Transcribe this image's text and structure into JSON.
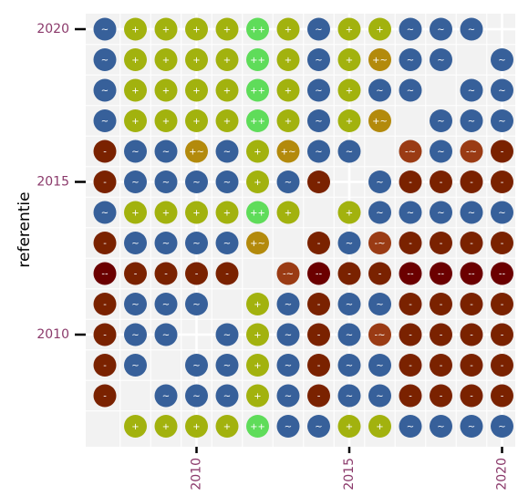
{
  "chart_data": {
    "type": "heatmap",
    "title": "",
    "xlabel": "",
    "ylabel": "referentie",
    "x": [
      2007,
      2008,
      2009,
      2010,
      2011,
      2012,
      2013,
      2014,
      2015,
      2016,
      2017,
      2018,
      2019,
      2020
    ],
    "y": [
      2020,
      2019,
      2018,
      2017,
      2016,
      2015,
      2014,
      2013,
      2012,
      2011,
      2010,
      2009,
      2008,
      2007
    ],
    "xticks": [
      2010,
      2015,
      2020
    ],
    "yticks": [
      2020,
      2015,
      2010
    ],
    "grid": true,
    "colors": {
      "--": "#6b0000",
      "-": "#7a2200",
      "-~": "#9a3b14",
      "~": "#37609a",
      "+~": "#b38a0c",
      "+": "#a2b20e",
      "++": "#5fdc5a"
    },
    "rows": [
      [
        "~",
        "+",
        "+",
        "+",
        "+",
        "++",
        "+",
        "~",
        "+",
        "+",
        "~",
        "~",
        "~",
        null
      ],
      [
        "~",
        "+",
        "+",
        "+",
        "+",
        "++",
        "+",
        "~",
        "+",
        "+~",
        "~",
        "~",
        null,
        "~"
      ],
      [
        "~",
        "+",
        "+",
        "+",
        "+",
        "++",
        "+",
        "~",
        "+",
        "~",
        "~",
        null,
        "~",
        "~"
      ],
      [
        "~",
        "+",
        "+",
        "+",
        "+",
        "++",
        "+",
        "~",
        "+",
        "+~",
        null,
        "~",
        "~",
        "~"
      ],
      [
        "-",
        "~",
        "~",
        "+~",
        "~",
        "+",
        "+~",
        "~",
        "~",
        null,
        "-~",
        "~",
        "-~",
        "-"
      ],
      [
        "-",
        "~",
        "~",
        "~",
        "~",
        "+",
        "~",
        "-",
        null,
        "~",
        "-",
        "-",
        "-",
        "-"
      ],
      [
        "~",
        "+",
        "+",
        "+",
        "+",
        "++",
        "+",
        null,
        "+",
        "~",
        "~",
        "~",
        "~",
        "~"
      ],
      [
        "-",
        "~",
        "~",
        "~",
        "~",
        "+~",
        null,
        "-",
        "~",
        "-~",
        "-",
        "-",
        "-",
        "-"
      ],
      [
        "--",
        "-",
        "-",
        "-",
        "-",
        null,
        "-~",
        "--",
        "-",
        "-",
        "--",
        "--",
        "--",
        "--"
      ],
      [
        "-",
        "~",
        "~",
        "~",
        null,
        "+",
        "~",
        "-",
        "~",
        "~",
        "-",
        "-",
        "-",
        "-"
      ],
      [
        "-",
        "~",
        "~",
        null,
        "~",
        "+",
        "~",
        "-",
        "~",
        "-~",
        "-",
        "-",
        "-",
        "-"
      ],
      [
        "-",
        "~",
        null,
        "~",
        "~",
        "+",
        "~",
        "-",
        "~",
        "~",
        "-",
        "-",
        "-",
        "-"
      ],
      [
        "-",
        null,
        "~",
        "~",
        "~",
        "+",
        "~",
        "-",
        "~",
        "~",
        "-",
        "-",
        "-",
        "-"
      ],
      [
        null,
        "+",
        "+",
        "+",
        "+",
        "++",
        "~",
        "~",
        "+",
        "+",
        "~",
        "~",
        "~",
        "~"
      ]
    ]
  }
}
